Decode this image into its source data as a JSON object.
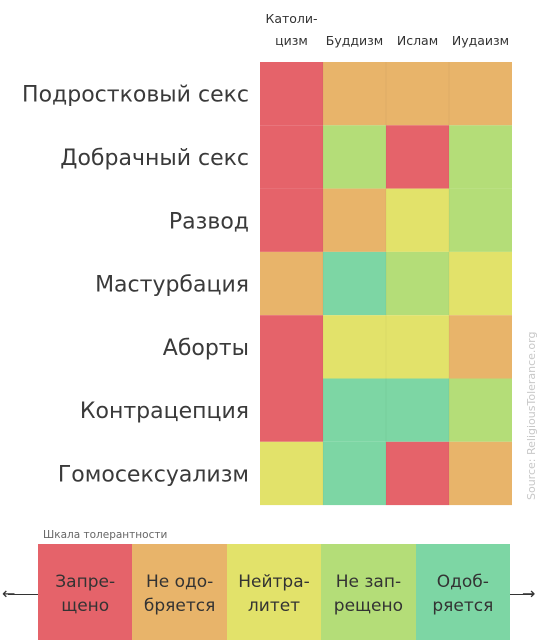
{
  "chart_data": {
    "type": "heatmap",
    "columns": [
      "Католи-\nцизм",
      "Буддизм",
      "Ислам",
      "Иудаизм"
    ],
    "rows": [
      "Подростковый секс",
      "Добрачный секс",
      "Развод",
      "Мастурбация",
      "Аборты",
      "Контрацепция",
      "Гомосексуализм"
    ],
    "values": [
      [
        1,
        2,
        2,
        2
      ],
      [
        1,
        4,
        1,
        4
      ],
      [
        1,
        2,
        3,
        4
      ],
      [
        2,
        5,
        4,
        3
      ],
      [
        1,
        3,
        3,
        2
      ],
      [
        1,
        5,
        5,
        4
      ],
      [
        3,
        5,
        1,
        2
      ]
    ],
    "source": "Source: ReligiousTolerance.org"
  },
  "scale": {
    "title": "Шкала толерантности",
    "levels": [
      {
        "value": 1,
        "label": "Запре-\nщено",
        "color": "#e5636a"
      },
      {
        "value": 2,
        "label": "Не одо-\nбряется",
        "color": "#e8b46a"
      },
      {
        "value": 3,
        "label": "Нейтра-\nлитет",
        "color": "#e2e26a"
      },
      {
        "value": 4,
        "label": "Не зап-\nрещено",
        "color": "#b4dd78"
      },
      {
        "value": 5,
        "label": "Одоб-\nряется",
        "color": "#7dd6a4"
      }
    ]
  }
}
